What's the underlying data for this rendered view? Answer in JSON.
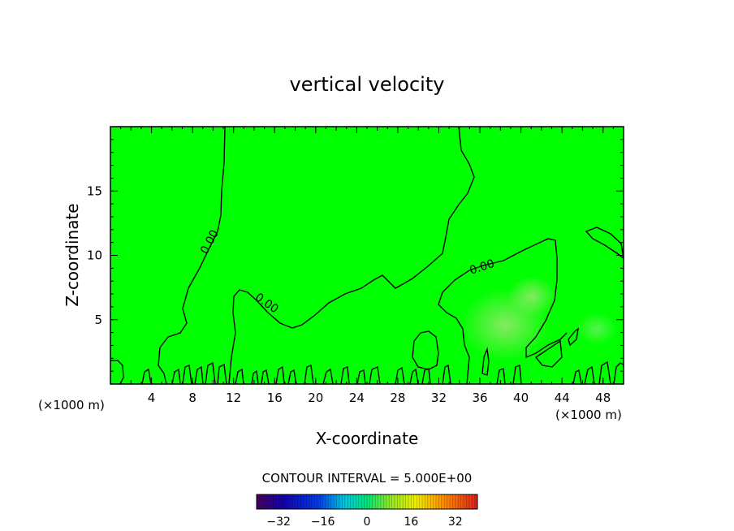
{
  "chart_data": {
    "type": "heatmap",
    "title": "vertical velocity",
    "xlabel": "X-coordinate",
    "ylabel": "Z-coordinate",
    "x_unit_left": "(×1000 m)",
    "x_unit_right": "(×1000 m)",
    "xlim": [
      0,
      50
    ],
    "ylim": [
      0,
      20
    ],
    "x_ticks": [
      "4",
      "8",
      "12",
      "16",
      "20",
      "24",
      "28",
      "32",
      "36",
      "40",
      "44",
      "48"
    ],
    "x_tick_values": [
      4,
      8,
      12,
      16,
      20,
      24,
      28,
      32,
      36,
      40,
      44,
      48
    ],
    "y_ticks": [
      "5",
      "10",
      "15"
    ],
    "y_tick_values": [
      5,
      10,
      15
    ],
    "contour_label_texts": [
      "0.00",
      "0.00",
      "0.00"
    ],
    "contour_interval_text": "CONTOUR INTERVAL = 5.000E+00",
    "colorbar": {
      "range": [
        -40,
        40
      ],
      "tick_labels": [
        "-32",
        "-16",
        "0",
        "16",
        "32"
      ],
      "tick_values": [
        -32,
        -16,
        0,
        16,
        32
      ]
    },
    "background_color": "#00ff00",
    "positive_patch_color": "#7ee66a",
    "contour_color": "#000000",
    "grid": false
  }
}
